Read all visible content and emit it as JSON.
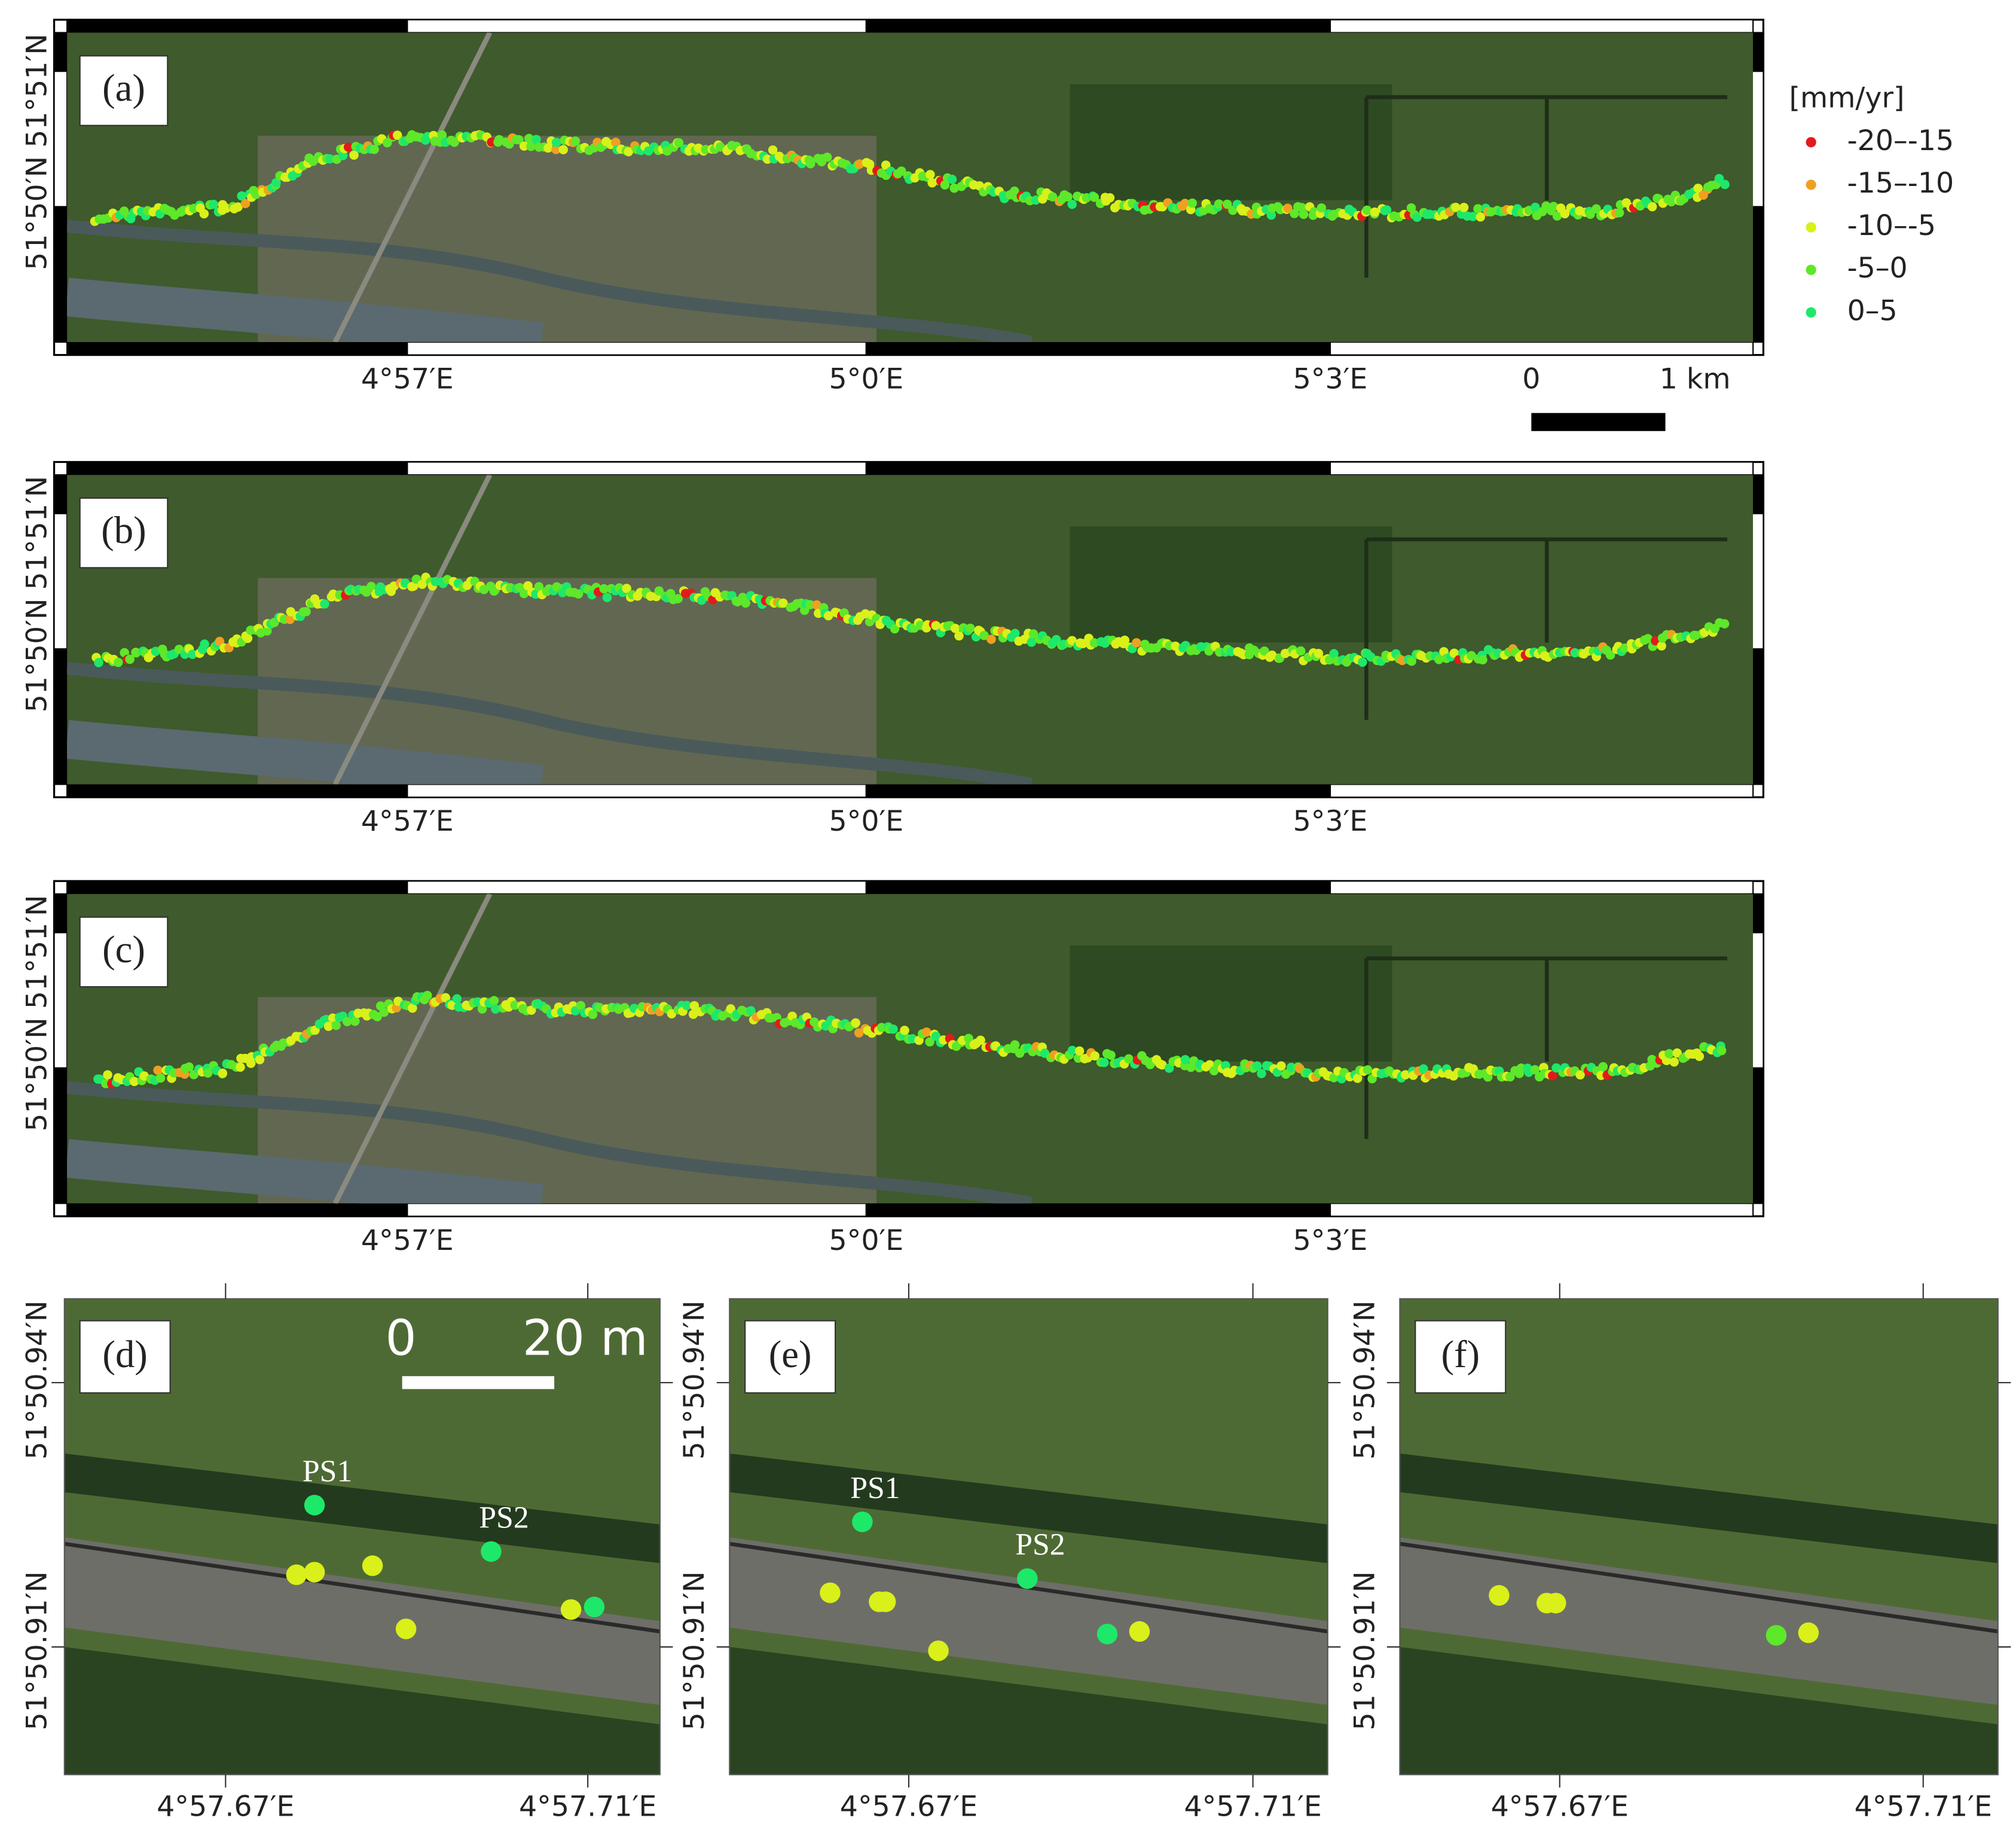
{
  "panels_top": [
    {
      "label": "(a)",
      "x_ticks": [
        "4°57′E",
        "5°0′E",
        "5°3′E"
      ],
      "y_ticks": [
        "51°51′N",
        "51°50′N"
      ]
    },
    {
      "label": "(b)",
      "x_ticks": [
        "4°57′E",
        "5°0′E",
        "5°3′E"
      ],
      "y_ticks": [
        "51°51′N",
        "51°50′N"
      ]
    },
    {
      "label": "(c)",
      "x_ticks": [
        "4°57′E",
        "5°0′E",
        "5°3′E"
      ],
      "y_ticks": [
        "51°51′N",
        "51°50′N"
      ]
    }
  ],
  "legend": {
    "title": "[mm/yr]",
    "items": [
      {
        "label": "-20–-15",
        "color": "#e31a1c"
      },
      {
        "label": "-15–-10",
        "color": "#f0a020"
      },
      {
        "label": "-10–-5",
        "color": "#d9f01a"
      },
      {
        "label": "-5–0",
        "color": "#5de82a"
      },
      {
        "label": "0–5",
        "color": "#1ee86a"
      }
    ]
  },
  "scale_bar_km": {
    "start": "0",
    "end": "1 km"
  },
  "panels_bottom": [
    {
      "label": "(d)",
      "x_ticks": [
        "4°57.67′E",
        "4°57.71′E"
      ],
      "y_ticks": [
        "51°50.94′N",
        "51°50.91′N"
      ],
      "points": [
        "PS1",
        "PS2"
      ]
    },
    {
      "label": "(e)",
      "x_ticks": [
        "4°57.67′E",
        "4°57.71′E"
      ],
      "y_ticks": [
        "51°50.94′N",
        "51°50.91′N"
      ],
      "points": [
        "PS1",
        "PS2"
      ]
    },
    {
      "label": "(f)",
      "x_ticks": [
        "4°57.67′E",
        "4°57.71′E"
      ],
      "y_ticks": [
        "51°50.94′N",
        "51°50.91′N"
      ]
    }
  ],
  "scale_bar_m": {
    "start": "0",
    "end": "20 m"
  }
}
